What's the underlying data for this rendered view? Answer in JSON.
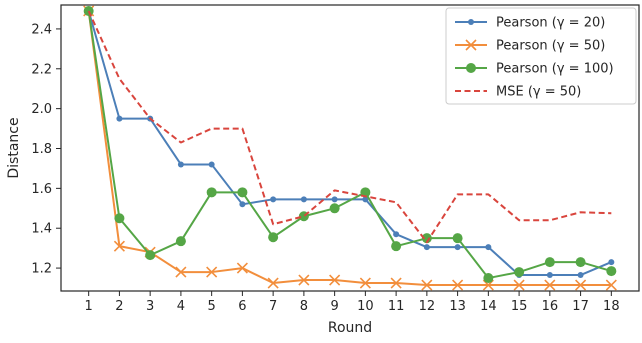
{
  "chart_data": {
    "type": "line",
    "title": "",
    "xlabel": "Round",
    "ylabel": "Distance",
    "x": [
      1,
      2,
      3,
      4,
      5,
      6,
      7,
      8,
      9,
      10,
      11,
      12,
      13,
      14,
      15,
      16,
      17,
      18
    ],
    "xlim": [
      0.1,
      18.9
    ],
    "ylim": [
      1.085,
      2.52
    ],
    "yticks": [
      1.2,
      1.4,
      1.6,
      1.8,
      2.0,
      2.2,
      2.4
    ],
    "ytick_labels": [
      "1.2",
      "1.4",
      "1.6",
      "1.8",
      "2.0",
      "2.2",
      "2.4"
    ],
    "xtick_labels": [
      "1",
      "2",
      "3",
      "4",
      "5",
      "6",
      "7",
      "8",
      "9",
      "10",
      "11",
      "12",
      "13",
      "14",
      "15",
      "16",
      "17",
      "18"
    ],
    "grid": false,
    "legend_position": "top-right",
    "series": [
      {
        "name": "Pearson (γ = 20)",
        "color": "#4c7fb8",
        "style": "solid",
        "marker": "dot",
        "values": [
          2.49,
          1.95,
          1.95,
          1.72,
          1.72,
          1.52,
          1.545,
          1.545,
          1.545,
          1.545,
          1.37,
          1.305,
          1.305,
          1.305,
          1.165,
          1.165,
          1.165,
          1.23
        ]
      },
      {
        "name": "Pearson (γ = 50)",
        "color": "#f28e3c",
        "style": "solid",
        "marker": "x",
        "values": [
          2.49,
          1.31,
          1.28,
          1.18,
          1.18,
          1.2,
          1.125,
          1.14,
          1.14,
          1.125,
          1.125,
          1.115,
          1.115,
          1.115,
          1.115,
          1.115,
          1.115,
          1.115
        ]
      },
      {
        "name": "Pearson (γ = 100)",
        "color": "#55a646",
        "style": "solid",
        "marker": "circle",
        "values": [
          2.49,
          1.45,
          1.265,
          1.335,
          1.58,
          1.58,
          1.355,
          1.46,
          1.5,
          1.58,
          1.31,
          1.35,
          1.35,
          1.15,
          1.18,
          1.23,
          1.23,
          1.185
        ]
      },
      {
        "name": "MSE (γ = 50)",
        "color": "#d9453d",
        "style": "dashed",
        "marker": "none",
        "values": [
          2.49,
          2.15,
          1.95,
          1.83,
          1.9,
          1.9,
          1.42,
          1.46,
          1.59,
          1.56,
          1.53,
          1.33,
          1.57,
          1.57,
          1.44,
          1.44,
          1.48,
          1.475
        ]
      }
    ]
  }
}
